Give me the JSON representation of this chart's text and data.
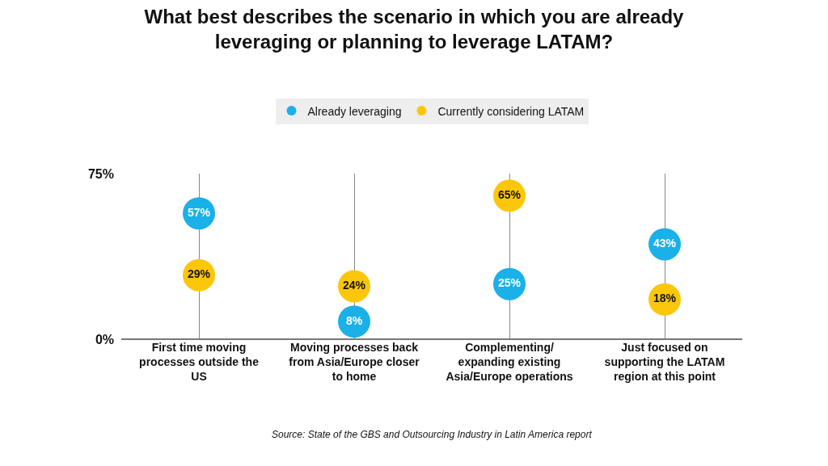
{
  "chart_data": {
    "type": "scatter",
    "title": "What best describes the scenario in which you are already leveraging or planning to leverage LATAM?",
    "categories": [
      "First time moving processes outside the US",
      "Moving processes back from Asia/Europe closer to home",
      "Complementing/ expanding existing Asia/Europe operations",
      "Just focused on supporting the LATAM region at this point"
    ],
    "series": [
      {
        "name": "Already leveraging",
        "color": "#1ab0e8",
        "values": [
          57,
          8,
          25,
          43
        ],
        "value_labels": [
          "57%",
          "8%",
          "25%",
          "43%"
        ]
      },
      {
        "name": "Currently considering LATAM",
        "color": "#fcc70a",
        "values": [
          29,
          24,
          65,
          18
        ],
        "value_labels": [
          "29%",
          "24%",
          "65%",
          "18%"
        ]
      }
    ],
    "ylim": [
      0,
      75
    ],
    "yticks": [
      {
        "value": 0,
        "label": "0%"
      },
      {
        "value": 75,
        "label": "75%"
      }
    ],
    "grid": true,
    "legend": "top",
    "marker": "circle",
    "annotations": [
      "Source: State of the GBS and Outsourcing Industry in Latin America report"
    ]
  }
}
